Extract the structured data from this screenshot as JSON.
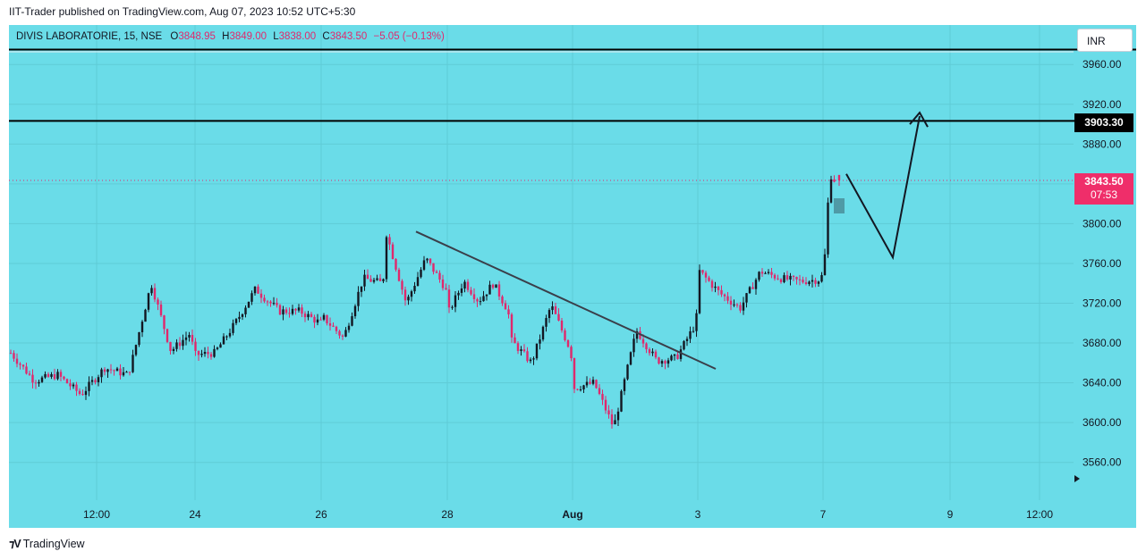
{
  "header": {
    "published_line": "IIT-Trader published on TradingView.com, Aug 07, 2023 10:52 UTC+5:30"
  },
  "legend": {
    "symbol": "DIVIS LABORATORIE, 15, NSE",
    "open_key": "O",
    "open": "3848.95",
    "high_key": "H",
    "high": "3849.00",
    "low_key": "L",
    "low": "3838.00",
    "close_key": "C",
    "close": "3843.50",
    "change": "−5.05 (−0.13%)"
  },
  "currency_button": "INR",
  "price_tags": {
    "level": "3903.30",
    "last_price": "3843.50",
    "countdown": "07:53"
  },
  "footer": {
    "logo_text": "TradingView"
  },
  "colors": {
    "background": "#6adce8",
    "up_candle": "#131722",
    "down_candle": "#e0286c",
    "level_line": "#000000",
    "trendline": "#3a3f4a",
    "last_price_tag": "#ef2e6a"
  },
  "chart_data": {
    "type": "candlestick",
    "symbol": "DIVIS LABORATORIE",
    "interval": "15",
    "exchange": "NSE",
    "currency": "INR",
    "y_axis": {
      "ticks": [
        3960,
        3920,
        3880,
        3840,
        3800,
        3760,
        3720,
        3680,
        3640,
        3600,
        3560
      ],
      "tick_labels": [
        "3960.00",
        "3920.00",
        "3880.00",
        "3840.00",
        "3800.00",
        "3760.00",
        "3720.00",
        "3680.00",
        "3640.00",
        "3600.00",
        "3560.00"
      ],
      "range": [
        3525,
        3982
      ]
    },
    "x_axis": {
      "tick_labels": [
        "12:00",
        "24",
        "26",
        "28",
        "Aug",
        "3",
        "7",
        "9",
        "12:00"
      ],
      "bold_label": "Aug"
    },
    "grid": true,
    "horizontal_levels": [
      3903.3,
      3975.0
    ],
    "last_price": 3843.5,
    "ohlc_last": {
      "open": 3848.95,
      "high": 3849.0,
      "low": 3838.0,
      "close": 3843.5
    },
    "price_path_waypoints": [
      {
        "session": "Jul 21",
        "price": 3670
      },
      {
        "session": "Jul 21",
        "price": 3642
      },
      {
        "session": "Jul 21",
        "price": 3648
      },
      {
        "session": "Jul 21",
        "price": 3628
      },
      {
        "session": "Jul 21",
        "price": 3655
      },
      {
        "session": "Jul 21",
        "price": 3648
      },
      {
        "session": "Jul 24",
        "price": 3660
      },
      {
        "session": "Jul 24",
        "price": 3740
      },
      {
        "session": "Jul 24",
        "price": 3672
      },
      {
        "session": "Jul 24",
        "price": 3690
      },
      {
        "session": "Jul 25",
        "price": 3668
      },
      {
        "session": "Jul 25",
        "price": 3670
      },
      {
        "session": "Jul 25",
        "price": 3700
      },
      {
        "session": "Jul 25",
        "price": 3735
      },
      {
        "session": "Jul 26",
        "price": 3730
      },
      {
        "session": "Jul 26",
        "price": 3712
      },
      {
        "session": "Jul 26",
        "price": 3712
      },
      {
        "session": "Jul 26",
        "price": 3700
      },
      {
        "session": "Jul 27",
        "price": 3705
      },
      {
        "session": "Jul 27",
        "price": 3685
      },
      {
        "session": "Jul 27",
        "price": 3745
      },
      {
        "session": "Jul 27",
        "price": 3740
      },
      {
        "session": "Jul 28",
        "price": 3790
      },
      {
        "session": "Jul 28",
        "price": 3720
      },
      {
        "session": "Jul 28",
        "price": 3765
      },
      {
        "session": "Jul 28",
        "price": 3735
      },
      {
        "session": "Jul 31",
        "price": 3712
      },
      {
        "session": "Jul 31",
        "price": 3742
      },
      {
        "session": "Jul 31",
        "price": 3722
      },
      {
        "session": "Jul 31",
        "price": 3740
      },
      {
        "session": "Jul 31",
        "price": 3712
      },
      {
        "session": "Aug 1",
        "price": 3682
      },
      {
        "session": "Aug 1",
        "price": 3660
      },
      {
        "session": "Aug 1",
        "price": 3718
      },
      {
        "session": "Aug 1",
        "price": 3672
      },
      {
        "session": "Aug 2",
        "price": 3635
      },
      {
        "session": "Aug 2",
        "price": 3640
      },
      {
        "session": "Aug 2",
        "price": 3595
      },
      {
        "session": "Aug 2",
        "price": 3680
      },
      {
        "session": "Aug 3",
        "price": 3692
      },
      {
        "session": "Aug 3",
        "price": 3662
      },
      {
        "session": "Aug 3",
        "price": 3665
      },
      {
        "session": "Aug 3",
        "price": 3700
      },
      {
        "session": "Aug 4",
        "price": 3752
      },
      {
        "session": "Aug 4",
        "price": 3730
      },
      {
        "session": "Aug 4",
        "price": 3715
      },
      {
        "session": "Aug 4",
        "price": 3752
      },
      {
        "session": "Aug 4",
        "price": 3745
      },
      {
        "session": "Aug 4",
        "price": 3742
      },
      {
        "session": "Aug 4",
        "price": 3744
      },
      {
        "session": "Aug 7",
        "price": 3768
      },
      {
        "session": "Aug 7",
        "price": 3850
      },
      {
        "session": "Aug 7",
        "price": 3843.5
      }
    ],
    "drawings": {
      "trendline": {
        "from": {
          "date": "Jul 27",
          "price": 3792
        },
        "to": {
          "date": "Aug 3",
          "price": 3654
        }
      },
      "projection_path": [
        {
          "date": "Aug 7",
          "price": 3850
        },
        {
          "date": "Aug 8",
          "price": 3766
        },
        {
          "date": "Aug 8",
          "price": 3908
        }
      ],
      "arrow_target": 3908
    }
  }
}
